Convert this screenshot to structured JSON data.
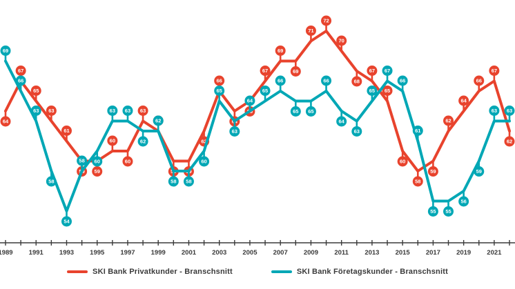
{
  "chart_data": {
    "type": "line",
    "title": "",
    "xlabel": "",
    "ylabel": "",
    "grid": false,
    "legend_position": "bottom",
    "point_labels": "each data point shows its value inside a circular lollipop marker",
    "categories": [
      1989,
      1990,
      1991,
      1992,
      1993,
      1994,
      1995,
      1996,
      1997,
      1998,
      1999,
      2000,
      2001,
      2002,
      2003,
      2004,
      2005,
      2006,
      2007,
      2008,
      2009,
      2010,
      2011,
      2012,
      2013,
      2014,
      2015,
      2016,
      2017,
      2018,
      2019,
      2020,
      2021,
      2022
    ],
    "x_tick_labels": [
      "1989",
      "1991",
      "1993",
      "1995",
      "1997",
      "1999",
      "2001",
      "2003",
      "2005",
      "2007",
      "2009",
      "2011",
      "2013",
      "2015",
      "2017",
      "2019",
      "2021"
    ],
    "ylim": [
      50,
      76
    ],
    "series": [
      {
        "name": "SKI Bank Privatkunder - Branschsnitt",
        "color": "#e8432d",
        "values": [
          64,
          67,
          65,
          63,
          61,
          59,
          59,
          60,
          60,
          63,
          62,
          59,
          59,
          62,
          66,
          64,
          65,
          67,
          69,
          69,
          71,
          72,
          70,
          68,
          67,
          65,
          60,
          58,
          59,
          62,
          64,
          66,
          67,
          62
        ]
      },
      {
        "name": "SKI Bank Företagskunder - Branschsnitt",
        "color": "#00a7b5",
        "values": [
          69,
          66,
          63,
          58,
          54,
          58,
          60,
          63,
          63,
          62,
          62,
          58,
          58,
          60,
          65,
          63,
          64,
          65,
          66,
          65,
          65,
          66,
          64,
          63,
          65,
          67,
          66,
          61,
          55,
          55,
          56,
          59,
          63,
          63
        ]
      }
    ]
  },
  "colors": {
    "background": "#ffffff",
    "axis": "#3a3a3a",
    "tick_text": "#3a3a3a",
    "marker_value_text": "#ffffff"
  },
  "legend": {
    "items": [
      {
        "label": "SKI Bank Privatkunder - Branschsnitt",
        "color": "#e8432d"
      },
      {
        "label": "SKI Bank Företagskunder - Branschsnitt",
        "color": "#00a7b5"
      }
    ]
  }
}
